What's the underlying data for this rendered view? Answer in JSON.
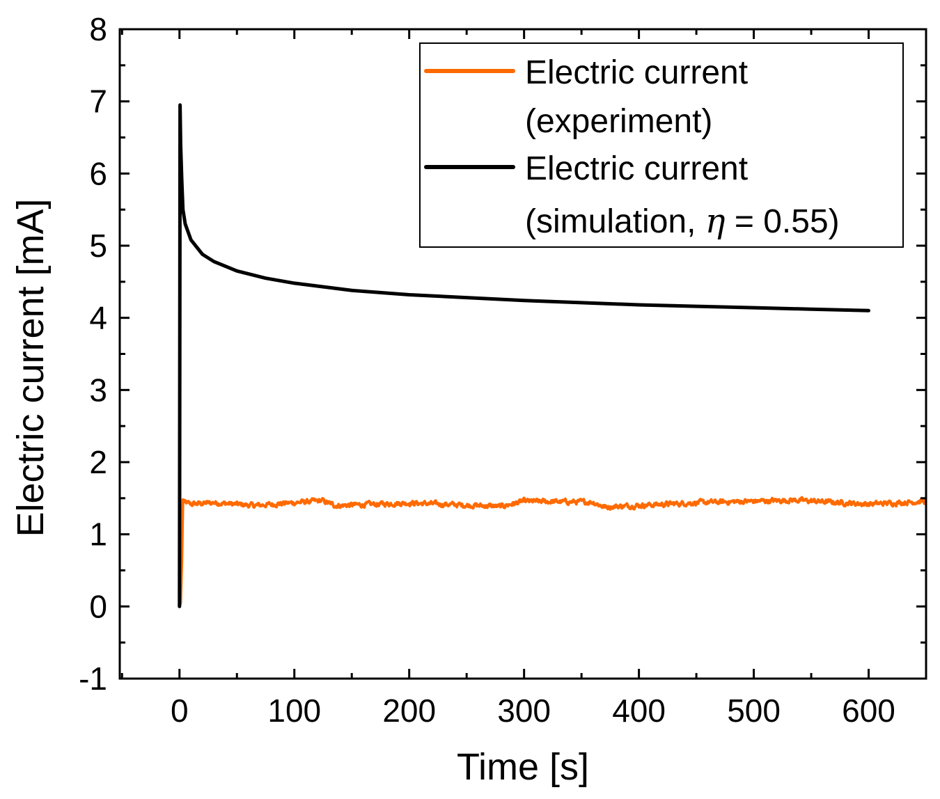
{
  "chart_data": {
    "type": "line",
    "title": "",
    "xlabel": "Time [s]",
    "ylabel": "Electric current [mA]",
    "xlim": [
      -52,
      650
    ],
    "ylim": [
      -1,
      8
    ],
    "x_ticks": [
      0,
      100,
      200,
      300,
      400,
      500,
      600
    ],
    "x_tick_labels": [
      "0",
      "100",
      "200",
      "300",
      "400",
      "500",
      "600"
    ],
    "x_minor_step": 50,
    "y_ticks": [
      -1,
      0,
      1,
      2,
      3,
      4,
      5,
      6,
      7,
      8
    ],
    "y_tick_labels": [
      "-1",
      "0",
      "1",
      "2",
      "3",
      "4",
      "5",
      "6",
      "7",
      "8"
    ],
    "grid": false,
    "legend_position": "top-right",
    "legend": [
      {
        "series": "experiment",
        "line1": "Electric current",
        "line2": "(experiment)",
        "line2_parts": {
          "prefix": "(experiment)",
          "symbol": "",
          "suffix": ""
        }
      },
      {
        "series": "simulation",
        "line1": "Electric current",
        "line2": "(simulation, η = 0.55)",
        "line2_parts": {
          "prefix": "(simulation, ",
          "symbol": "η",
          "suffix": " = 0.55)"
        }
      }
    ],
    "series": [
      {
        "name": "Electric current (experiment)",
        "color": "#FF6A00",
        "kind": "noisy-steady",
        "x_start": 0,
        "x_end": 650,
        "ramp_end_time": 3,
        "mean": 1.43,
        "noise_amplitude": 0.06,
        "points": [
          [
            0,
            0
          ],
          [
            1,
            0.05
          ],
          [
            2,
            0.6
          ],
          [
            3,
            1.48
          ],
          [
            10,
            1.4
          ],
          [
            30,
            1.45
          ],
          [
            65,
            1.35
          ],
          [
            124,
            1.52
          ],
          [
            136,
            1.35
          ],
          [
            200,
            1.44
          ],
          [
            280,
            1.32
          ],
          [
            300,
            1.5
          ],
          [
            360,
            1.47
          ],
          [
            370,
            1.3
          ],
          [
            450,
            1.45
          ],
          [
            535,
            1.54
          ],
          [
            600,
            1.4
          ],
          [
            650,
            1.5
          ]
        ]
      },
      {
        "name": "Electric current (simulation, η = 0.55)",
        "color": "#000000",
        "kind": "decay",
        "points": [
          [
            0,
            0
          ],
          [
            0.5,
            6.95
          ],
          [
            1,
            6.4
          ],
          [
            2,
            5.9
          ],
          [
            3,
            5.5
          ],
          [
            5,
            5.3
          ],
          [
            10,
            5.08
          ],
          [
            20,
            4.88
          ],
          [
            30,
            4.78
          ],
          [
            50,
            4.65
          ],
          [
            75,
            4.55
          ],
          [
            100,
            4.48
          ],
          [
            150,
            4.38
          ],
          [
            200,
            4.32
          ],
          [
            250,
            4.28
          ],
          [
            300,
            4.24
          ],
          [
            350,
            4.21
          ],
          [
            400,
            4.18
          ],
          [
            450,
            4.16
          ],
          [
            500,
            4.14
          ],
          [
            550,
            4.12
          ],
          [
            600,
            4.1
          ]
        ]
      }
    ]
  }
}
